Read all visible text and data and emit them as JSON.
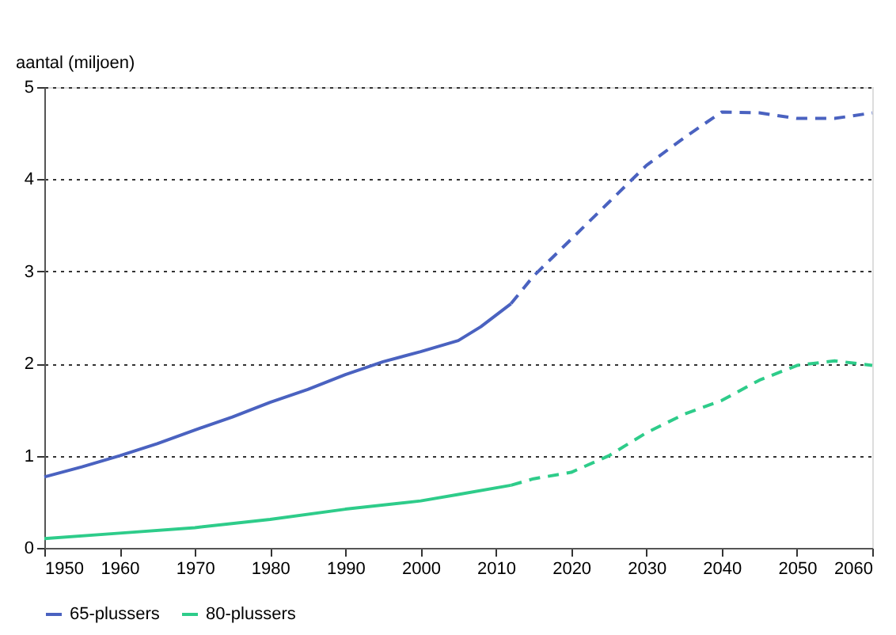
{
  "chart_data": {
    "type": "line",
    "ylabel": "aantal (miljoen)",
    "xlim": [
      1950,
      2060
    ],
    "xticks": [
      1950,
      1960,
      1970,
      1980,
      1990,
      2000,
      2010,
      2020,
      2030,
      2040,
      2050,
      2060
    ],
    "ylim": [
      0,
      5
    ],
    "yticks": [
      0,
      1,
      2,
      3,
      4,
      5
    ],
    "grid": "y",
    "legend": "bottom",
    "marker": "none",
    "series": [
      {
        "name": "65-plussers",
        "color": "#4a62c0",
        "line_style": "solid",
        "x": [
          1950,
          1955,
          1960,
          1965,
          1970,
          1975,
          1980,
          1985,
          1990,
          1995,
          2000,
          2005,
          2008,
          2012
        ],
        "values": [
          0.77,
          0.88,
          1.0,
          1.13,
          1.28,
          1.42,
          1.58,
          1.72,
          1.88,
          2.02,
          2.13,
          2.25,
          2.4,
          2.65
        ]
      },
      {
        "name": "80-plussers",
        "color": "#2ecc8a",
        "line_style": "solid",
        "x": [
          1950,
          1960,
          1970,
          1980,
          1990,
          2000,
          2005,
          2012
        ],
        "values": [
          0.1,
          0.16,
          0.22,
          0.31,
          0.42,
          0.51,
          0.58,
          0.68
        ]
      },
      {
        "color": "#4a62c0",
        "line_style": "dashed",
        "x": [
          2012,
          2015,
          2020,
          2025,
          2030,
          2035,
          2040,
          2045,
          2050,
          2055,
          2060
        ],
        "values": [
          2.65,
          2.95,
          3.35,
          3.75,
          4.15,
          4.45,
          4.73,
          4.72,
          4.66,
          4.66,
          4.72
        ]
      },
      {
        "color": "#2ecc8a",
        "line_style": "dashed",
        "x": [
          2012,
          2015,
          2020,
          2025,
          2030,
          2035,
          2040,
          2045,
          2050,
          2055,
          2060
        ],
        "values": [
          0.68,
          0.75,
          0.82,
          1.0,
          1.25,
          1.45,
          1.6,
          1.82,
          1.98,
          2.03,
          1.98
        ]
      }
    ]
  }
}
